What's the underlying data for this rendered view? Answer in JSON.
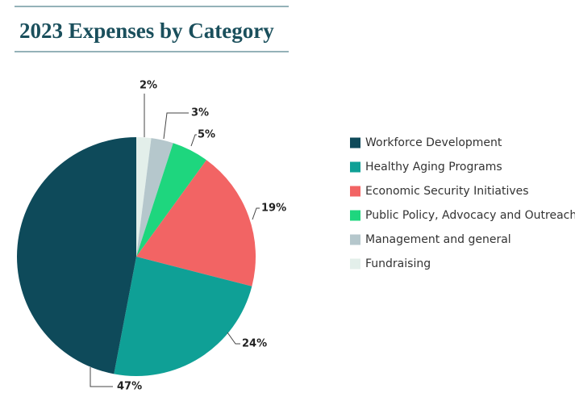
{
  "chart_data": {
    "type": "pie",
    "title": "2023 Expenses by Category",
    "categories": [
      "Workforce Development",
      "Healthy Aging Programs",
      "Economic Security Initiatives",
      "Public Policy, Advocacy and Outreach",
      "Management and general",
      "Fundraising"
    ],
    "values": [
      47,
      24,
      19,
      5,
      3,
      2
    ],
    "value_labels": [
      "47%",
      "24%",
      "19%",
      "5%",
      "3%",
      "2%"
    ],
    "colors": [
      "#0e4a5a",
      "#0fa096",
      "#f26464",
      "#1ed67e",
      "#b5c7cc",
      "#e3efea"
    ]
  }
}
